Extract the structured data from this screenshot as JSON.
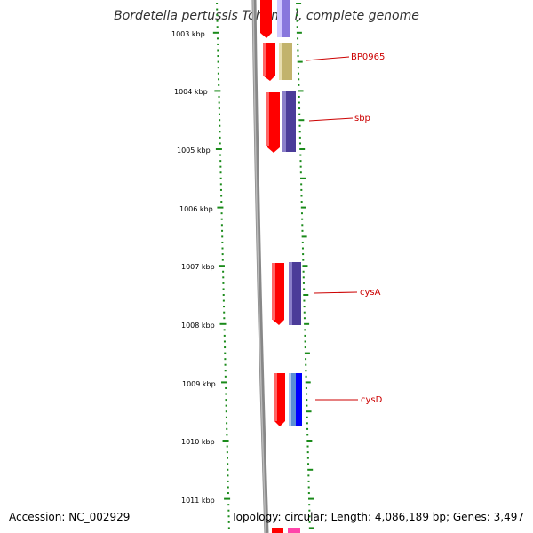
{
  "title": "Bordetella pertussis Tohama I, complete genome",
  "accession": "Accession: NC_002929",
  "topology": "Topology: circular; Length: 4,086,189 bp; Genes: 3,497",
  "kbp_labels": [
    "1003 kbp",
    "1004 kbp",
    "1005 kbp",
    "1006 kbp",
    "1007 kbp",
    "1008 kbp",
    "1009 kbp",
    "1010 kbp",
    "1011 kbp"
  ],
  "gene_labels": [
    "BP0965",
    "sbp",
    "cysA",
    "cysD"
  ],
  "colors": {
    "tick": "#1a8a1a",
    "backbone": "#888888",
    "red_feature": "#ff0000",
    "purple_feature": "#4b3c99",
    "tan_feature": "#c2b36c",
    "blue_feature": "#0000ff",
    "lightblue_feature": "#5b8fd6",
    "label": "#cc0000"
  }
}
